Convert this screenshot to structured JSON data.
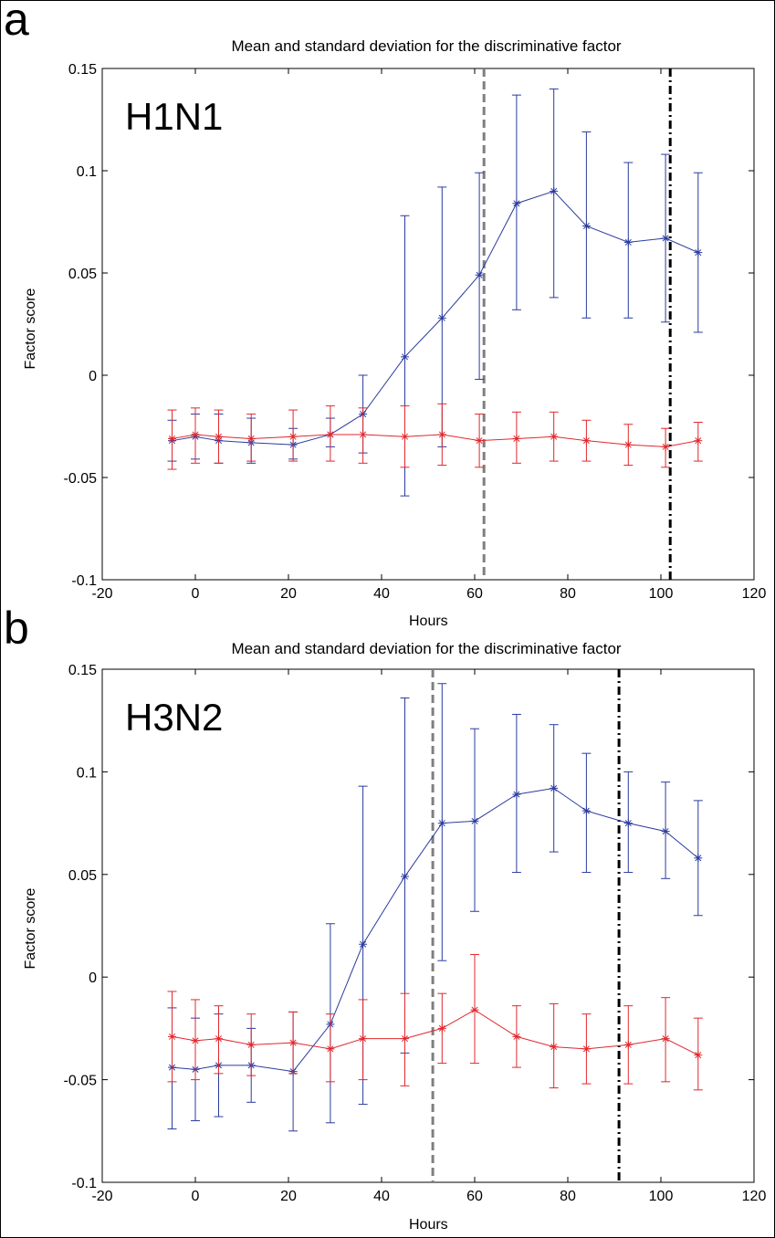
{
  "chart_data": [
    {
      "type": "line",
      "panel": "a",
      "title": "Mean and standard deviation for the discriminative factor",
      "strain_label": "H1N1",
      "xlabel": "Hours",
      "ylabel": "Factor score",
      "xlim": [
        -20,
        120
      ],
      "ylim": [
        -0.1,
        0.15
      ],
      "xticks": [
        -20,
        0,
        20,
        40,
        60,
        80,
        100,
        120
      ],
      "xtick_labels": [
        "-20",
        "0",
        "20",
        "40",
        "60",
        "80",
        "100",
        "120"
      ],
      "yticks": [
        -0.1,
        -0.05,
        0,
        0.05,
        0.1,
        0.15
      ],
      "ytick_labels": [
        "-0.1",
        "-0.05",
        "0",
        "0.05",
        "0.1",
        "0.15"
      ],
      "grid": false,
      "vlines": [
        {
          "x": 62,
          "style": "dashed",
          "color": "#7f7f7f"
        },
        {
          "x": 102,
          "style": "dashdot",
          "color": "#000000"
        }
      ],
      "series": [
        {
          "color": "#2b3b9e",
          "x": [
            -5,
            0,
            5,
            12,
            21,
            29,
            36,
            45,
            53,
            61,
            69,
            77,
            84,
            93,
            101,
            108
          ],
          "y": [
            -0.032,
            -0.03,
            -0.032,
            -0.033,
            -0.034,
            -0.029,
            -0.019,
            0.009,
            0.028,
            0.049,
            0.084,
            0.09,
            0.073,
            0.065,
            0.067,
            0.06
          ],
          "err_low": [
            -0.042,
            -0.041,
            -0.043,
            -0.043,
            -0.041,
            -0.035,
            -0.038,
            -0.059,
            -0.035,
            -0.002,
            0.032,
            0.038,
            0.028,
            0.028,
            0.026,
            0.021
          ],
          "err_high": [
            -0.022,
            -0.019,
            -0.019,
            -0.021,
            -0.026,
            -0.021,
            0.0,
            0.078,
            0.092,
            0.099,
            0.137,
            0.14,
            0.119,
            0.104,
            0.108,
            0.099
          ]
        },
        {
          "color": "#e0282e",
          "x": [
            -5,
            0,
            5,
            12,
            21,
            29,
            36,
            45,
            53,
            61,
            69,
            77,
            84,
            93,
            101,
            108
          ],
          "y": [
            -0.031,
            -0.029,
            -0.03,
            -0.031,
            -0.03,
            -0.029,
            -0.029,
            -0.03,
            -0.029,
            -0.032,
            -0.031,
            -0.03,
            -0.032,
            -0.034,
            -0.035,
            -0.032
          ],
          "err_low": [
            -0.046,
            -0.043,
            -0.043,
            -0.042,
            -0.042,
            -0.042,
            -0.043,
            -0.045,
            -0.044,
            -0.045,
            -0.043,
            -0.042,
            -0.042,
            -0.044,
            -0.045,
            -0.042
          ],
          "err_high": [
            -0.017,
            -0.016,
            -0.017,
            -0.019,
            -0.017,
            -0.015,
            -0.016,
            -0.015,
            -0.014,
            -0.019,
            -0.018,
            -0.018,
            -0.022,
            -0.024,
            -0.026,
            -0.023
          ]
        }
      ]
    },
    {
      "type": "line",
      "panel": "b",
      "title": "Mean and standard deviation for the discriminative factor",
      "strain_label": "H3N2",
      "xlabel": "Hours",
      "ylabel": "Factor score",
      "xlim": [
        -20,
        120
      ],
      "ylim": [
        -0.1,
        0.15
      ],
      "xticks": [
        -20,
        0,
        20,
        40,
        60,
        80,
        100,
        120
      ],
      "xtick_labels": [
        "-20",
        "0",
        "20",
        "40",
        "60",
        "80",
        "100",
        "120"
      ],
      "yticks": [
        -0.1,
        -0.05,
        0,
        0.05,
        0.1,
        0.15
      ],
      "ytick_labels": [
        "-0.1",
        "-0.05",
        "0",
        "0.05",
        "0.1",
        "0.15"
      ],
      "grid": false,
      "vlines": [
        {
          "x": 51,
          "style": "dashed",
          "color": "#7f7f7f"
        },
        {
          "x": 91,
          "style": "dashdot",
          "color": "#000000"
        }
      ],
      "series": [
        {
          "color": "#2b3b9e",
          "x": [
            -5,
            0,
            5,
            12,
            21,
            29,
            36,
            45,
            53,
            60,
            69,
            77,
            84,
            93,
            101,
            108
          ],
          "y": [
            -0.044,
            -0.045,
            -0.043,
            -0.043,
            -0.046,
            -0.023,
            0.016,
            0.049,
            0.075,
            0.076,
            0.089,
            0.092,
            0.081,
            0.075,
            0.071,
            0.058
          ],
          "err_low": [
            -0.074,
            -0.07,
            -0.068,
            -0.061,
            -0.075,
            -0.071,
            -0.062,
            -0.037,
            0.008,
            0.032,
            0.051,
            0.061,
            0.051,
            0.051,
            0.048,
            0.03
          ],
          "err_high": [
            -0.015,
            -0.02,
            -0.018,
            -0.025,
            -0.017,
            0.026,
            0.093,
            0.136,
            0.143,
            0.121,
            0.128,
            0.123,
            0.109,
            0.1,
            0.095,
            0.086
          ]
        },
        {
          "color": "#e0282e",
          "x": [
            -5,
            0,
            5,
            12,
            21,
            29,
            36,
            45,
            53,
            60,
            69,
            77,
            84,
            93,
            101,
            108
          ],
          "y": [
            -0.029,
            -0.031,
            -0.03,
            -0.033,
            -0.032,
            -0.035,
            -0.03,
            -0.03,
            -0.025,
            -0.016,
            -0.029,
            -0.034,
            -0.035,
            -0.033,
            -0.03,
            -0.038
          ],
          "err_low": [
            -0.051,
            -0.05,
            -0.047,
            -0.048,
            -0.047,
            -0.051,
            -0.05,
            -0.053,
            -0.042,
            -0.042,
            -0.044,
            -0.054,
            -0.052,
            -0.052,
            -0.051,
            -0.055
          ],
          "err_high": [
            -0.007,
            -0.011,
            -0.014,
            -0.018,
            -0.017,
            -0.018,
            -0.011,
            -0.008,
            -0.008,
            0.011,
            -0.014,
            -0.013,
            -0.018,
            -0.014,
            -0.01,
            -0.02
          ]
        }
      ]
    }
  ]
}
